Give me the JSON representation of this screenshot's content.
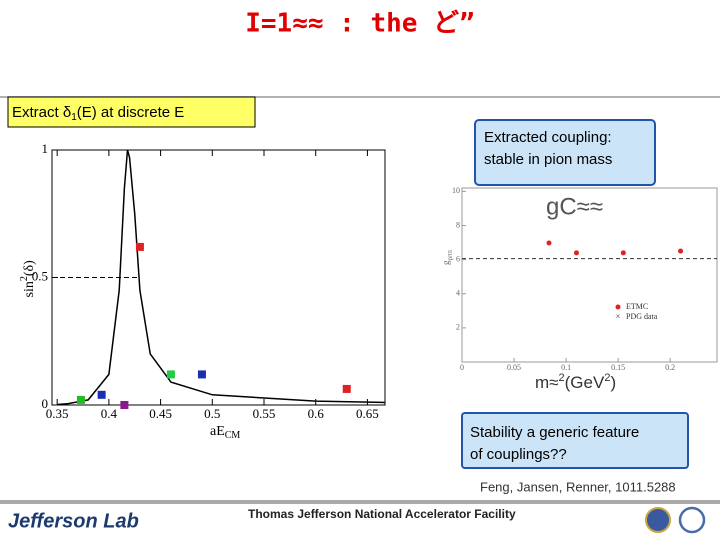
{
  "title": "I=1≈≈ : the ど”",
  "callouts": {
    "extract": [
      "Extract  δ",
      "1",
      "(E) at discrete E"
    ],
    "coupling": [
      "Extracted coupling:",
      "stable in pion mass"
    ],
    "stability": [
      "Stability a generic feature",
      "of couplings??"
    ]
  },
  "citation": "Feng, Jansen, Renner, 1011.5288",
  "footer": {
    "lab": "Jefferson Lab",
    "facility": "Thomas Jefferson National Accelerator Facility"
  },
  "phase_plot": {
    "xlim": [
      0.345,
      0.667
    ],
    "ylim": [
      0,
      1
    ],
    "xticks": [
      0.35,
      0.4,
      0.45,
      0.5,
      0.55,
      0.6,
      0.65
    ],
    "yticks": [
      0,
      0.5,
      1
    ],
    "y_label": [
      "sin",
      "2",
      "(δ)"
    ],
    "x_label": [
      "aE",
      "CM"
    ],
    "points": {
      "x": [
        0.373,
        0.393,
        0.415,
        0.43,
        0.46,
        0.49,
        0.63
      ],
      "y": [
        0.02,
        0.04,
        0.0,
        0.62,
        0.12,
        0.12,
        0.063
      ],
      "colors": [
        "#22bb22",
        "#1a2fb0",
        "#8a1a8a",
        "#dd2222",
        "#22cc44",
        "#1a2fb0",
        "#dd2222"
      ]
    },
    "curve": {
      "x": [
        0.35,
        0.36,
        0.38,
        0.4,
        0.41,
        0.415,
        0.418,
        0.42,
        0.425,
        0.43,
        0.44,
        0.46,
        0.5,
        0.6,
        0.667
      ],
      "y": [
        0.002,
        0.005,
        0.02,
        0.12,
        0.45,
        0.85,
        1.0,
        0.97,
        0.75,
        0.45,
        0.2,
        0.09,
        0.04,
        0.015,
        0.01
      ]
    }
  },
  "coupling_plot": {
    "xlim": [
      0,
      0.245
    ],
    "ylim": [
      0,
      10.2
    ],
    "xticks": [
      0,
      0.05,
      0.1,
      0.15,
      0.2
    ],
    "yticks": [
      2,
      4,
      6,
      8,
      10
    ],
    "y_label": [
      "g",
      "ρππ"
    ],
    "points": {
      "x": [
        0.11,
        0.155,
        0.21
      ],
      "y": [
        6.4,
        6.4,
        6.5
      ],
      "color": "#dd2222"
    },
    "pdg_value": 6.06,
    "legend": [
      "ETMC",
      "PDG data"
    ],
    "overlay": {
      "symbol": "gC≈≈",
      "x_label": [
        "m≈",
        "2",
        "(GeV",
        "2",
        ")"
      ]
    }
  }
}
